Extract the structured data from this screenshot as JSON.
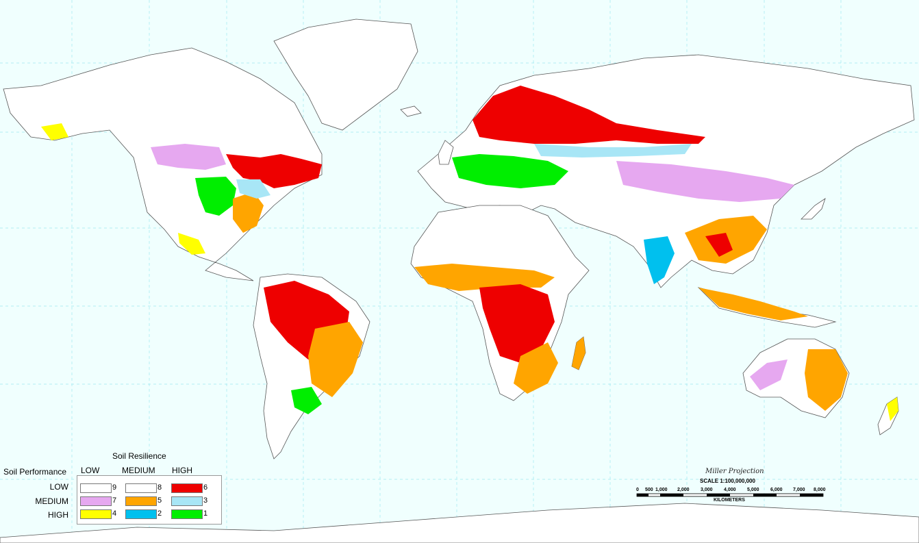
{
  "legend": {
    "resilience_title": "Soil Resilience",
    "performance_title": "Soil Performance",
    "resilience_levels": [
      "LOW",
      "MEDIUM",
      "HIGH"
    ],
    "performance_levels": [
      "LOW",
      "MEDIUM",
      "HIGH"
    ],
    "classes": [
      {
        "number": "9",
        "color": "#ffffff"
      },
      {
        "number": "8",
        "color": "#ffffff"
      },
      {
        "number": "6",
        "color": "#ee0000"
      },
      {
        "number": "7",
        "color": "#e6a8f0"
      },
      {
        "number": "5",
        "color": "#ffa500"
      },
      {
        "number": "3",
        "color": "#a8e6f6"
      },
      {
        "number": "4",
        "color": "#ffff00"
      },
      {
        "number": "2",
        "color": "#00c0ee"
      },
      {
        "number": "1",
        "color": "#00ee00"
      }
    ]
  },
  "projection": "Miller Projection",
  "scale": {
    "label": "SCALE 1:100,000,000",
    "ticks": [
      "0",
      "500",
      "1,000",
      "2,000",
      "3,000",
      "4,000",
      "5,000",
      "6,000",
      "7,000",
      "8,000"
    ],
    "unit": "KILOMETERS"
  },
  "colors": {
    "ocean": "#f0fffe",
    "land": "#ffffff",
    "coast": "#555555",
    "grid": "#9de8f0"
  }
}
